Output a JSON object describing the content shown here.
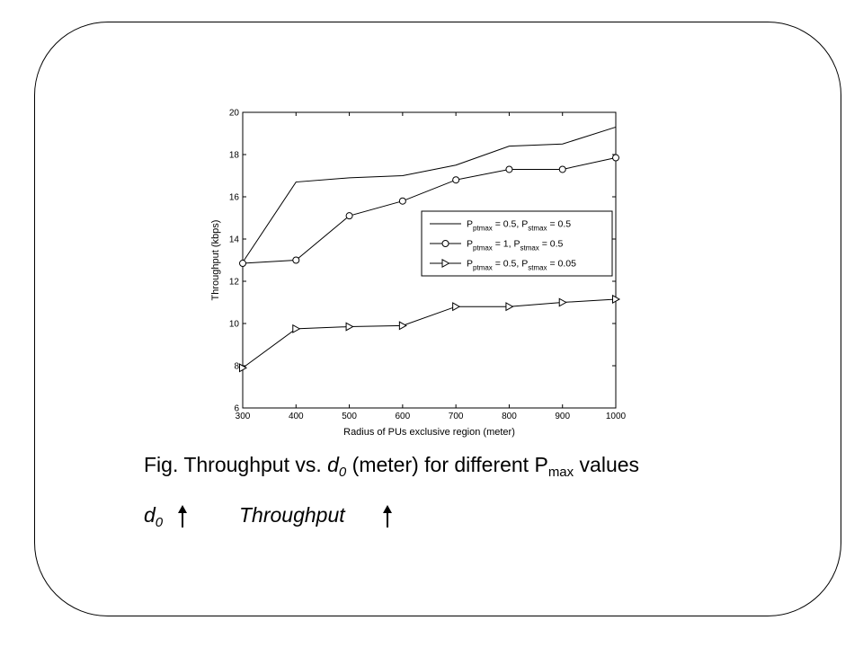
{
  "chart_data": {
    "type": "line",
    "xlabel": "Radius of PUs exclusive region (meter)",
    "ylabel": "Throughput (kbps)",
    "xlim": [
      300,
      1000
    ],
    "ylim": [
      6,
      20
    ],
    "xticks": [
      300,
      400,
      500,
      600,
      700,
      800,
      900,
      1000
    ],
    "yticks": [
      6,
      8,
      10,
      12,
      14,
      16,
      18,
      20
    ],
    "grid": false,
    "legend_position": "center-right",
    "x": [
      300,
      400,
      500,
      600,
      700,
      800,
      900,
      1000
    ],
    "series": [
      {
        "name": "P_ptmax = 0.5, P_stmax = 0.5",
        "legend": {
          "p1": "P",
          "s1": "ptmax",
          "m1": " = 0.5, P",
          "s2": "stmax",
          "m2": " = 0.5"
        },
        "marker": "none",
        "values": [
          12.9,
          16.7,
          16.9,
          17.0,
          17.5,
          18.4,
          18.5,
          19.3
        ]
      },
      {
        "name": "P_ptmax = 1, P_stmax = 0.5",
        "legend": {
          "p1": "P",
          "s1": "ptmax",
          "m1": " = 1, P",
          "s2": "stmax",
          "m2": " = 0.5"
        },
        "marker": "circle",
        "values": [
          12.85,
          13.0,
          15.1,
          15.8,
          16.8,
          17.3,
          17.3,
          17.85
        ]
      },
      {
        "name": "P_ptmax = 0.5, P_stmax = 0.05",
        "legend": {
          "p1": "P",
          "s1": "ptmax",
          "m1": " = 0.5, P",
          "s2": "stmax",
          "m2": " = 0.05"
        },
        "marker": "triangle-right",
        "values": [
          7.9,
          9.75,
          9.85,
          9.9,
          10.8,
          10.8,
          11.0,
          11.15
        ]
      }
    ]
  },
  "caption": {
    "prefix": "Fig. Throughput vs. ",
    "d": "d",
    "d_sub": "0",
    "middle": " (meter) for different P",
    "p_sub": "max",
    "suffix": " values"
  },
  "relation": {
    "d": "d",
    "d_sub": "0",
    "throughput": "Throughput"
  }
}
